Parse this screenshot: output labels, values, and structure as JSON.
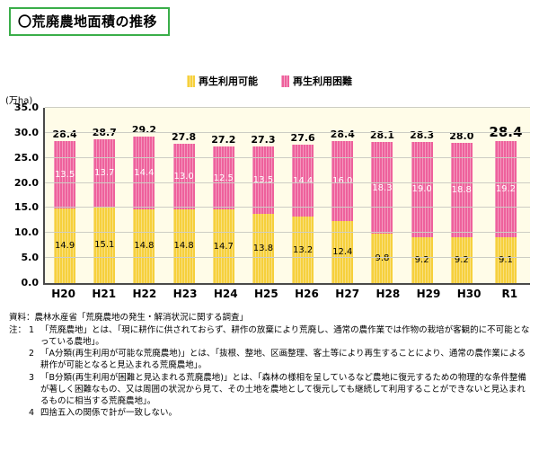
{
  "title": "〇荒廃農地面積の推移",
  "unit_label": "(万ha)",
  "chart_data": {
    "type": "bar",
    "stacked": true,
    "title": "荒廃農地面積の推移",
    "unit": "万ha",
    "categories": [
      "H20",
      "H21",
      "H22",
      "H23",
      "H24",
      "H25",
      "H26",
      "H27",
      "H28",
      "H29",
      "H30",
      "R1"
    ],
    "series": [
      {
        "name": "再生利用可能",
        "color": "#f6d03c",
        "values": [
          14.9,
          15.1,
          14.8,
          14.8,
          14.7,
          13.8,
          13.2,
          12.4,
          9.8,
          9.2,
          9.2,
          9.1
        ]
      },
      {
        "name": "再生利用困難",
        "color": "#ee619c",
        "values": [
          13.5,
          13.7,
          14.4,
          13.0,
          12.5,
          13.5,
          14.4,
          16.0,
          18.3,
          19.0,
          18.8,
          19.2
        ]
      }
    ],
    "totals": [
      28.4,
      28.7,
      29.2,
      27.8,
      27.2,
      27.3,
      27.6,
      28.4,
      28.1,
      28.3,
      28.0,
      28.4
    ],
    "emphasized_category": "R1",
    "ylim": [
      0,
      35
    ],
    "ytick_step": 5,
    "grid": true,
    "legend_position": "top",
    "plot_background": "#fffce8"
  },
  "footer": {
    "source": "資料：農林水産省「荒廃農地の発生・解消状況に関する調査」",
    "notes_prefix": "注：",
    "notes": [
      {
        "num": "1",
        "text": "「荒廃農地」とは、「現に耕作に供されておらず、耕作の放棄により荒廃し、通常の農作業では作物の栽培が客観的に不可能となっている農地」。"
      },
      {
        "num": "2",
        "text": "「A分類(再生利用が可能な荒廃農地)」とは、「抜根、整地、区画整理、客土等により再生することにより、通常の農作業による耕作が可能となると見込まれる荒廃農地」。"
      },
      {
        "num": "3",
        "text": "「B分類(再生利用が困難と見込まれる荒廃農地)」とは、「森林の様相を呈しているなど農地に復元するための物理的な条件整備が著しく困難なもの、又は周囲の状況から見て、その土地を農地として復元しても継続して利用することができないと見込まれるものに相当する荒廃農地」。"
      },
      {
        "num": "4",
        "text": "四捨五入の関係で計が一致しない。"
      }
    ]
  }
}
